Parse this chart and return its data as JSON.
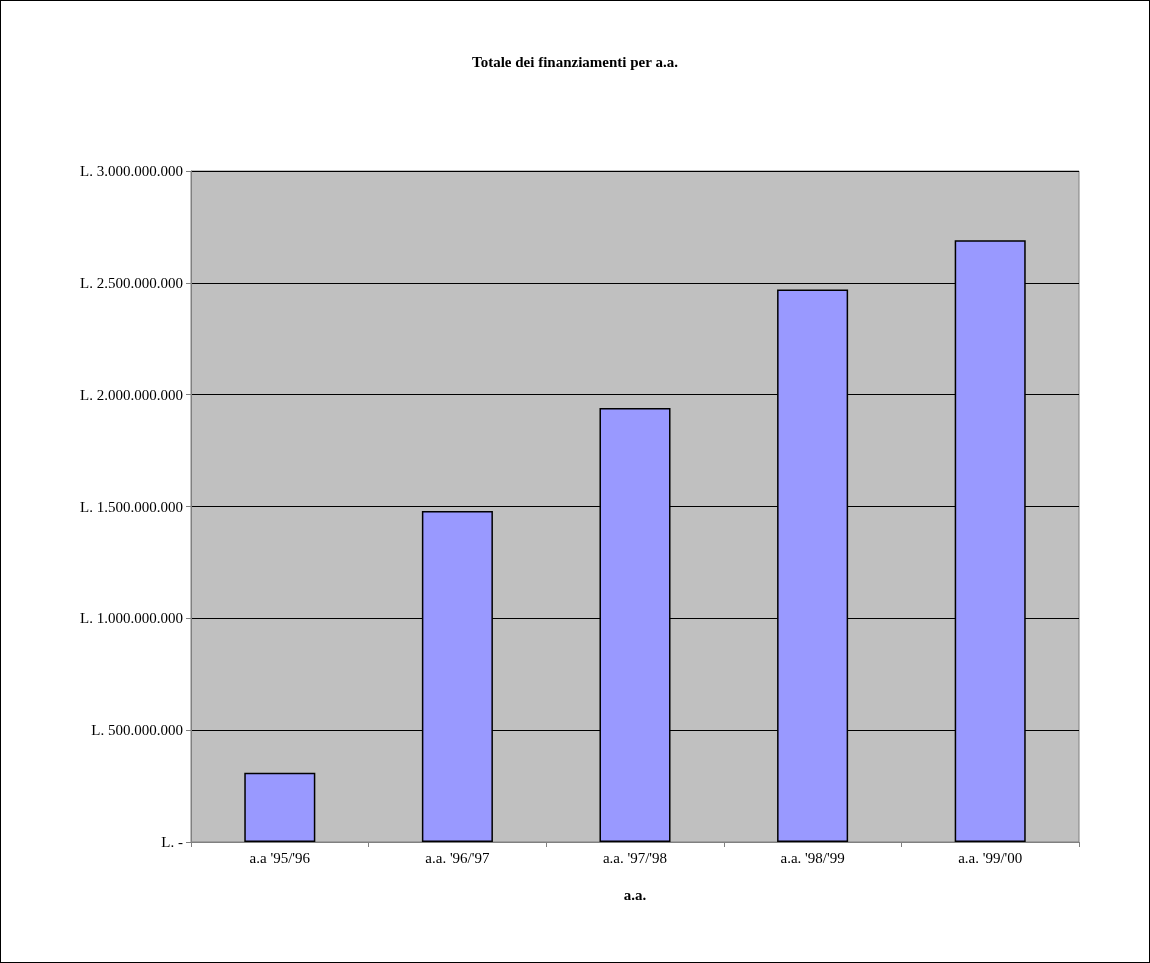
{
  "chart_data": {
    "type": "bar",
    "title": "Totale dei finanziamenti per a.a.",
    "xlabel": "a.a.",
    "categories": [
      "a.a '95/'96",
      "a.a. '96/'97",
      "a.a. '97/'98",
      "a.a. '98/'99",
      "a.a. '99/'00"
    ],
    "values": [
      310000000,
      1480000000,
      1940000000,
      2470000000,
      2690000000
    ],
    "color": "#9999ff",
    "ylim": [
      0,
      3000000000
    ],
    "yticks": [
      {
        "value": 0,
        "label": "L. -"
      },
      {
        "value": 500000000,
        "label": "L. 500.000.000"
      },
      {
        "value": 1000000000,
        "label": "L. 1.000.000.000"
      },
      {
        "value": 1500000000,
        "label": "L. 1.500.000.000"
      },
      {
        "value": 2000000000,
        "label": "L. 2.000.000.000"
      },
      {
        "value": 2500000000,
        "label": "L. 2.500.000.000"
      },
      {
        "value": 3000000000,
        "label": "L. 3.000.000.000"
      }
    ],
    "grid": true
  }
}
